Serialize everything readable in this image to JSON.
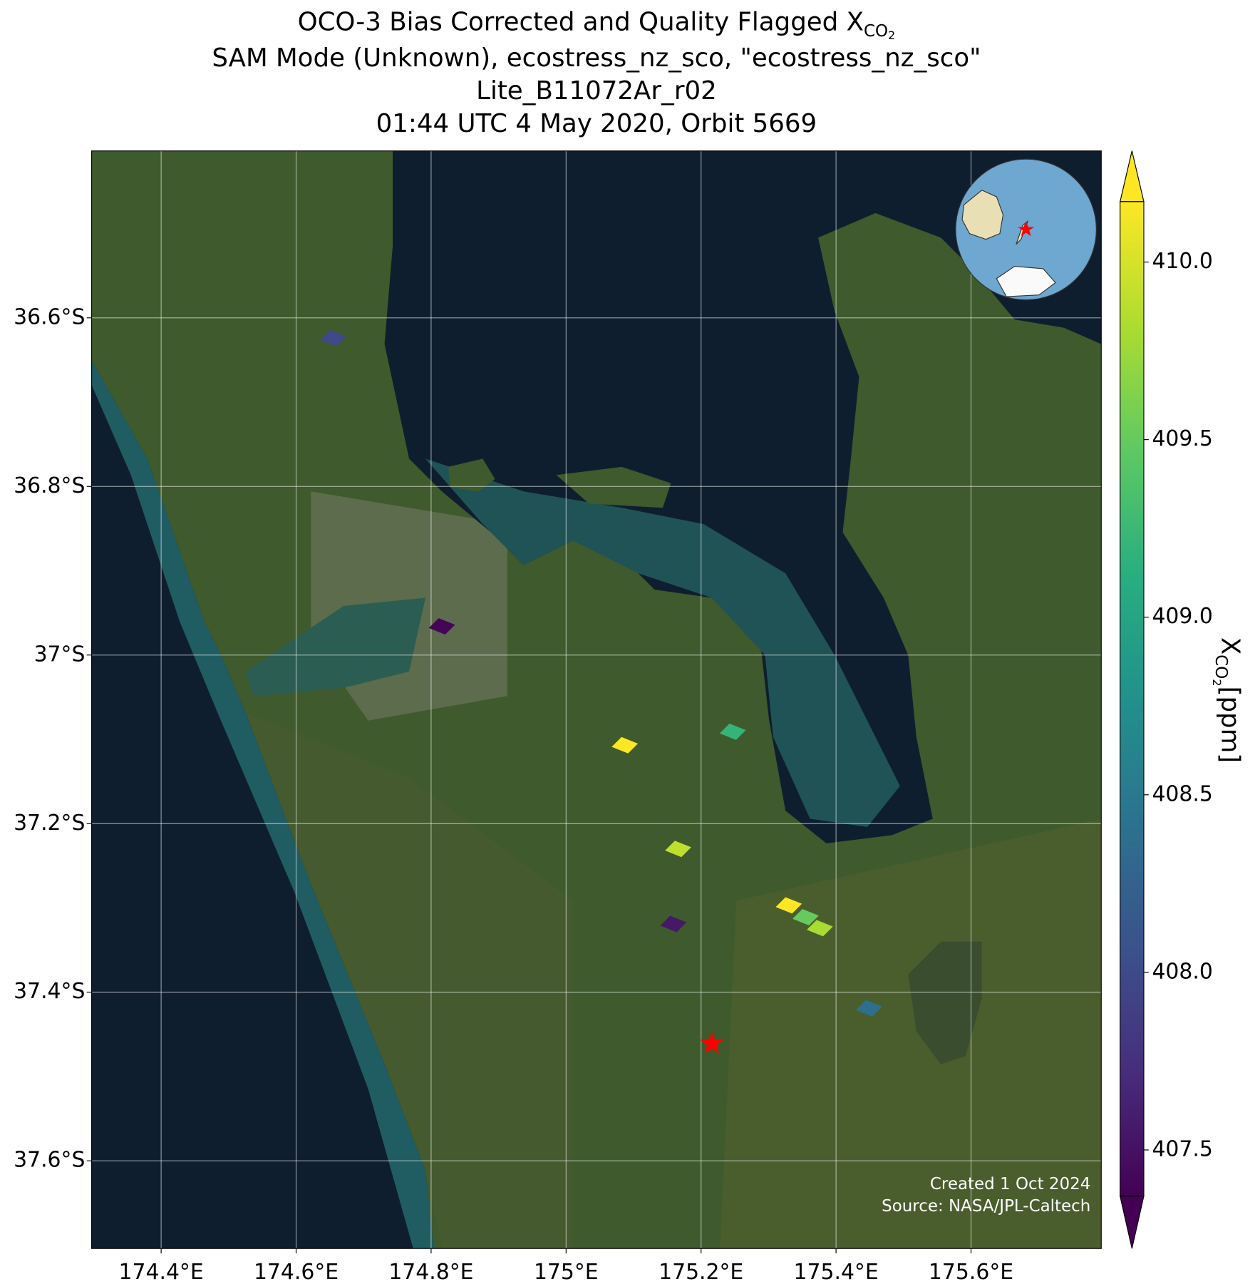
{
  "chart_data": {
    "type": "map-scatter",
    "title": "OCO-3 Bias Corrected and Quality Flagged X",
    "subscript": "CO",
    "subscript2": "2",
    "subtitles": [
      "SAM Mode (Unknown), ecostress_nz_sco, \"ecostress_nz_sco\"",
      "Lite_B11072Ar_r02",
      "01:44 UTC 4 May 2020, Orbit 5669"
    ],
    "xlim": [
      174.297,
      175.793
    ],
    "ylim": [
      -37.704,
      -36.402
    ],
    "xticks": [
      {
        "value": 174.4,
        "label": "174.4°E"
      },
      {
        "value": 174.6,
        "label": "174.6°E"
      },
      {
        "value": 174.8,
        "label": "174.8°E"
      },
      {
        "value": 175.0,
        "label": "175°E"
      },
      {
        "value": 175.2,
        "label": "175.2°E"
      },
      {
        "value": 175.4,
        "label": "175.4°E"
      },
      {
        "value": 175.6,
        "label": "175.6°E"
      }
    ],
    "yticks": [
      {
        "value": -36.6,
        "label": "36.6°S"
      },
      {
        "value": -36.8,
        "label": "36.8°S"
      },
      {
        "value": -37.0,
        "label": "37°S"
      },
      {
        "value": -37.2,
        "label": "37.2°S"
      },
      {
        "value": -37.4,
        "label": "37.4°S"
      },
      {
        "value": -37.6,
        "label": "37.6°S"
      }
    ],
    "grid": true,
    "colormap": "viridis",
    "x": [
      174.655,
      174.816,
      175.087,
      175.247,
      175.166,
      175.159,
      175.33,
      175.355,
      175.376,
      175.449
    ],
    "y": [
      -36.624,
      -36.966,
      -37.107,
      -37.091,
      -37.23,
      -37.319,
      -37.297,
      -37.311,
      -37.324,
      -37.419
    ],
    "values": [
      408.0,
      407.4,
      410.2,
      409.2,
      409.9,
      407.55,
      410.2,
      409.5,
      409.8,
      408.4
    ],
    "target": {
      "x": 175.216,
      "y": -37.461,
      "color": "#ff0000"
    },
    "colorbar": {
      "label": "X",
      "unit": "[ppm]",
      "clim": [
        407.37,
        410.17
      ],
      "ticks": [
        407.5,
        {
          "value": 408,
          "label": "408.0"
        },
        408.5,
        {
          "value": 409,
          "label": "409.0"
        },
        409.5,
        {
          "value": 410,
          "label": "410.0"
        }
      ]
    },
    "credits": [
      "Created 1 Oct 2024",
      "Source: NASA/JPL-Caltech"
    ]
  }
}
